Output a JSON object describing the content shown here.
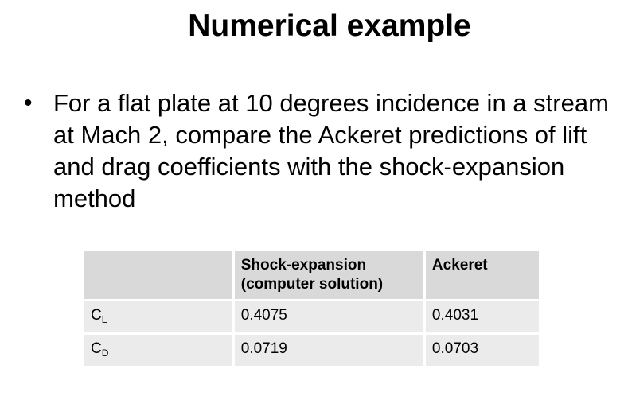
{
  "slide": {
    "title": "Numerical example",
    "bullet": "For a flat plate at 10 degrees incidence in a stream at Mach 2, compare the Ackeret predictions of lift and drag coefficients with the shock-expansion method"
  },
  "table": {
    "headers": {
      "blank": "",
      "shock_expansion": "Shock-expansion (computer solution)",
      "ackeret": "Ackeret"
    },
    "rows": [
      {
        "label_main": "C",
        "label_sub": "L",
        "shock_expansion": "0.4075",
        "ackeret": "0.4031"
      },
      {
        "label_main": "C",
        "label_sub": "D",
        "shock_expansion": "0.0719",
        "ackeret": "0.0703"
      }
    ]
  }
}
